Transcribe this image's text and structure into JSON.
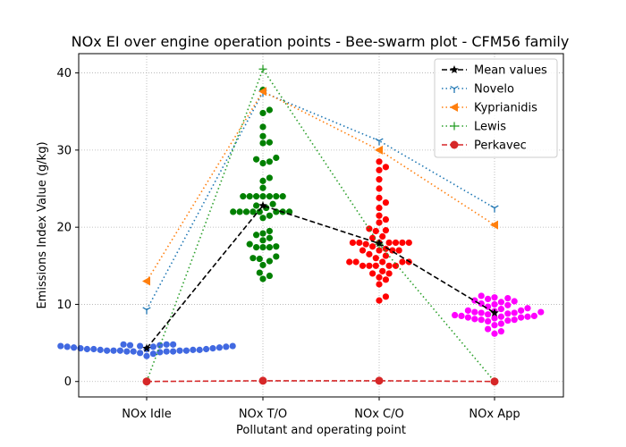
{
  "chart_data": {
    "type": "scatter",
    "title": "NOx EI over engine operation points - Bee-swarm plot - CFM56 family",
    "xlabel": "Pollutant and operating point",
    "ylabel": "Emissions Index Value (g/kg)",
    "categories": [
      "NOx Idle",
      "NOx T/O",
      "NOx C/O",
      "NOx App"
    ],
    "ylim": [
      -2,
      42.5
    ],
    "yticks": [
      0,
      10,
      20,
      30,
      40
    ],
    "grid": true,
    "legend_position": "top-right",
    "swarm": [
      {
        "category": "NOx Idle",
        "color": "#4169e1",
        "values": [
          4.4,
          4.2,
          4.1,
          4.0,
          3.9,
          3.9,
          4.0,
          4.8,
          4.7,
          4.5,
          4.3,
          4.2,
          4.0,
          3.8,
          3.7,
          4.5,
          4.8,
          4.6,
          3.3,
          3.6,
          3.9,
          4.1,
          4.6,
          4.7,
          4.8,
          4.3,
          4.0,
          4.1,
          4.2,
          4.4,
          4.5,
          4.6,
          4.0,
          3.9,
          4.2
        ]
      },
      {
        "category": "NOx T/O",
        "color": "#008000",
        "values": [
          37.8,
          35.2,
          34.8,
          33.0,
          31.8,
          31.0,
          30.9,
          29.0,
          28.8,
          28.5,
          28.3,
          26.4,
          26.0,
          25.1,
          24.0,
          24.0,
          24.0,
          24.0,
          24.0,
          24.0,
          24.0,
          23.0,
          22.8,
          22.5,
          22.0,
          22.0,
          22.0,
          22.0,
          22.0,
          22.0,
          22.0,
          22.0,
          21.5,
          21.2,
          19.5,
          19.2,
          19.0,
          18.6,
          18.3,
          17.8,
          17.5,
          17.4,
          17.4,
          17.4,
          16.2,
          16.0,
          15.9,
          15.6,
          15.1,
          14.1,
          13.7,
          13.3
        ]
      },
      {
        "category": "NOx C/O",
        "color": "#ff0000",
        "values": [
          28.5,
          27.8,
          27.4,
          26.2,
          25.0,
          23.8,
          23.2,
          22.5,
          21.5,
          21.0,
          20.6,
          19.8,
          19.6,
          19.5,
          18.8,
          18.6,
          18.0,
          18.0,
          18.0,
          18.0,
          18.0,
          18.0,
          18.0,
          17.8,
          17.5,
          17.2,
          17.0,
          17.0,
          17.0,
          17.0,
          16.5,
          16.3,
          16.0,
          15.5,
          15.5,
          15.5,
          15.5,
          15.5,
          15.0,
          15.0,
          15.0,
          15.0,
          15.0,
          14.3,
          14.0,
          14.0,
          13.5,
          13.2,
          12.6,
          11.0,
          10.5
        ]
      },
      {
        "category": "NOx App",
        "color": "#ff00ff",
        "values": [
          11.1,
          10.9,
          10.8,
          10.7,
          10.5,
          10.4,
          10.3,
          10.1,
          10.0,
          9.9,
          9.7,
          9.5,
          9.4,
          9.2,
          9.2,
          9.1,
          9.0,
          9.0,
          8.9,
          8.9,
          8.8,
          8.7,
          8.6,
          8.5,
          8.5,
          8.4,
          8.4,
          8.3,
          8.3,
          8.2,
          8.1,
          8.0,
          8.0,
          7.9,
          7.8,
          7.5,
          7.3,
          6.8,
          6.5,
          6.2
        ]
      }
    ],
    "series": [
      {
        "name": "Mean values",
        "values": [
          4.3,
          22.8,
          17.9,
          8.9
        ],
        "color": "#000000",
        "linestyle": "dashed",
        "marker": "star"
      },
      {
        "name": "Novelo",
        "values": [
          9.3,
          37.5,
          31.2,
          22.5
        ],
        "color": "#1f77b4",
        "linestyle": "dotted",
        "marker": "tri_down"
      },
      {
        "name": "Kyprianidis",
        "values": [
          13.0,
          37.6,
          30.0,
          20.3
        ],
        "color": "#ff7f0e",
        "linestyle": "dotted",
        "marker": "triangle_left"
      },
      {
        "name": "Lewis",
        "values": [
          0.0,
          40.5,
          17.8,
          0.0
        ],
        "color": "#2ca02c",
        "linestyle": "dotted",
        "marker": "plus"
      },
      {
        "name": "Perkavec",
        "values": [
          0.0,
          0.1,
          0.1,
          0.0
        ],
        "color": "#d62728",
        "linestyle": "dashed",
        "marker": "circle"
      }
    ]
  }
}
